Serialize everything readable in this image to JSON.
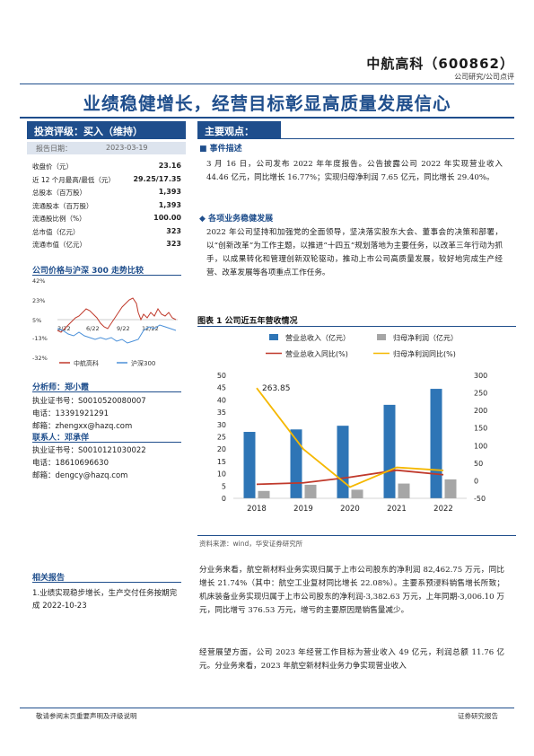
{
  "header": {
    "company": "中航高科（600862）",
    "subtype": "公司研究/公司点评",
    "headline": "业绩稳健增长，经营目标彰显高质量发展信心"
  },
  "left": {
    "rating": "投资评级：买入（维持）",
    "report_date_label": "报告日期：",
    "report_date": "2023-03-19",
    "stats": [
      {
        "label": "收盘价（元）",
        "value": "23.16"
      },
      {
        "label": "近 12 个月最高/最低（元）",
        "value": "29.25/17.35"
      },
      {
        "label": "总股本（百万股）",
        "value": "1,393"
      },
      {
        "label": "流通股本（百万股）",
        "value": "1,393"
      },
      {
        "label": "流通股比例（%）",
        "value": "100.00"
      },
      {
        "label": "总市值（亿元）",
        "value": "323"
      },
      {
        "label": "流通市值（亿元）",
        "value": "323"
      }
    ],
    "mini_chart": {
      "title": "公司价格与沪深 300 走势比较",
      "yticks": [
        "42%",
        "23%",
        "5%",
        "-13%",
        "-32%"
      ],
      "xticks": [
        "3/22",
        "6/22",
        "9/22",
        "12/22"
      ],
      "legend": [
        "中航高科",
        "沪深300"
      ],
      "colors": {
        "company": "#c0392b",
        "index": "#4a90d9"
      }
    },
    "analyst_title": "分析师：郑小霞",
    "analyst_lines": [
      "执业证书号：S0010520080007",
      "电话：13391921291",
      "邮箱：zhengxx@hazq.com"
    ],
    "contact_title": "联系人：邓承佯",
    "contact_lines": [
      "执业证书号：S0010121030022",
      "电话：18610696630",
      "邮箱：dengcy@hazq.com"
    ],
    "related_title": "相关报告",
    "related_text": "1.业绩实现稳步增长，生产交付任务按期完成 2022-10-23"
  },
  "main": {
    "views_title": "主要观点：",
    "event_title": "事件描述",
    "event_text": "3 月 16 日，公司发布 2022 年年度报告。公告披露公司 2022 年实现营业收入 44.46 亿元，同比增长 16.77%；实现归母净利润 7.65 亿元，同比增长 29.40%。",
    "biz_title": "各项业务稳健发展",
    "biz_text": "2022 年公司坚持和加强党的全面领导，坚决落实股东大会、董事会的决策和部署，以“创新改革”为工作主题，以推进“十四五”规划落地为主要任务，以改革三年行动为抓手，以成果转化和管理创新双轮驱动，推动上市公司高质量发展，较好地完成生产经营、改革发展等各项重点工作任务。",
    "fig_title": "图表 1 公司近五年营收情况",
    "source": "资料来源：wind，华安证券研究所",
    "para1": "分业务来看，航空新材料业务实现归属于上市公司股东的净利润 82,462.75 万元，同比增长 21.74%（其中：航空工业复材同比增长 22.08%）。主要系预浸料销售增长所致；机床装备业务实现归属于上市公司股东的净利润-3,382.63 万元，上年同期-3,006.10 万元，同比增亏 376.53 万元，增亏的主要原因是销售量减少。",
    "para2": "经营展望方面，公司 2023 年经营工作目标为营业收入 49 亿元，利润总额 11.76 亿元。分业务来看，2023 年航空新材料业务力争实现营业收入"
  },
  "chart_data": {
    "type": "bar",
    "categories": [
      "2018",
      "2019",
      "2020",
      "2021",
      "2022"
    ],
    "series": [
      {
        "name": "营业总收入（亿元）",
        "axis": "left",
        "kind": "bar",
        "color": "#2e75b6",
        "values": [
          27,
          28,
          29.5,
          38,
          44.5
        ]
      },
      {
        "name": "归母净利润（亿元）",
        "axis": "left",
        "kind": "bar",
        "color": "#a6a6a6",
        "values": [
          3,
          5.5,
          3.5,
          6,
          7.7
        ]
      },
      {
        "name": "营业总收入同比(%)",
        "axis": "right",
        "kind": "line",
        "color": "#c0392b",
        "values": [
          -10,
          -6,
          10,
          30,
          17
        ]
      },
      {
        "name": "归母净利润同比(%)",
        "axis": "right",
        "kind": "line",
        "color": "#f5b800",
        "values": [
          263.85,
          90,
          -18,
          38,
          29.4
        ]
      }
    ],
    "left_ticks": [
      "50",
      "45",
      "40",
      "35",
      "30",
      "25",
      "20",
      "15",
      "10",
      "5",
      "0"
    ],
    "right_ticks": [
      "300",
      "250",
      "200",
      "150",
      "100",
      "50",
      "0",
      "-50"
    ],
    "ylim_left": [
      0,
      50
    ],
    "ylim_right": [
      -50,
      300
    ],
    "annotation": "263.85"
  },
  "footer": {
    "left": "敬请参阅末页重要声明及评级说明",
    "right": "证券研究报告"
  }
}
